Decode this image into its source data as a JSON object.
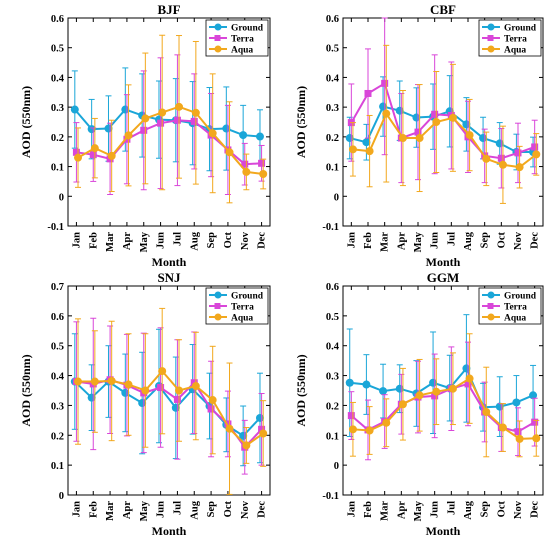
{
  "chart_data": [
    {
      "type": "line",
      "title": "BJF",
      "xlabel": "Month",
      "ylabel": "AOD (550nm)",
      "ylim": [
        -0.1,
        0.6
      ],
      "yticks": [
        -0.1,
        0,
        0.1,
        0.2,
        0.3,
        0.4,
        0.5,
        0.6
      ],
      "categories": [
        "Jan",
        "Feb",
        "Mar",
        "Apr",
        "May",
        "Jun",
        "Jul",
        "Aug",
        "Sep",
        "Oct",
        "Nov",
        "Dec"
      ],
      "legend": "top-right",
      "series": [
        {
          "name": "Ground",
          "color": "#1aa6d8",
          "marker": "circle",
          "values": [
            0.292,
            0.226,
            0.228,
            0.292,
            0.272,
            0.258,
            0.256,
            0.246,
            0.226,
            0.228,
            0.206,
            0.201
          ],
          "errors": [
            0.13,
            0.1,
            0.11,
            0.14,
            0.14,
            0.13,
            0.14,
            0.14,
            0.14,
            0.14,
            0.1,
            0.09
          ]
        },
        {
          "name": "Terra",
          "color": "#d946d9",
          "marker": "square",
          "values": [
            0.148,
            0.14,
            0.126,
            0.192,
            0.222,
            0.246,
            0.256,
            0.252,
            0.206,
            0.156,
            0.108,
            0.111
          ],
          "errors": [
            0.1,
            0.09,
            0.12,
            0.15,
            0.2,
            0.22,
            0.22,
            0.16,
            0.14,
            0.15,
            0.07,
            0.06
          ]
        },
        {
          "name": "Aqua",
          "color": "#f2a81d",
          "marker": "circle",
          "values": [
            0.13,
            0.162,
            0.136,
            0.205,
            0.262,
            0.282,
            0.301,
            0.281,
            0.212,
            0.148,
            0.082,
            0.075
          ],
          "errors": [
            0.1,
            0.1,
            0.12,
            0.17,
            0.22,
            0.26,
            0.24,
            0.24,
            0.2,
            0.17,
            0.06,
            0.05
          ]
        }
      ]
    },
    {
      "type": "line",
      "title": "CBF",
      "xlabel": "Month",
      "ylabel": "AOD (550nm)",
      "ylim": [
        -0.1,
        0.6
      ],
      "yticks": [
        -0.1,
        0,
        0.1,
        0.2,
        0.3,
        0.4,
        0.5,
        0.6
      ],
      "categories": [
        "Jan",
        "Feb",
        "Mar",
        "Apr",
        "May",
        "Jun",
        "Jul",
        "Aug",
        "Sep",
        "Oct",
        "Nov",
        "Dec"
      ],
      "legend": "top-right",
      "series": [
        {
          "name": "Ground",
          "color": "#1aa6d8",
          "marker": "circle",
          "values": [
            0.196,
            0.182,
            0.302,
            0.288,
            0.265,
            0.268,
            0.286,
            0.242,
            0.196,
            0.178,
            0.149,
            0.149
          ],
          "errors": [
            0.07,
            0.06,
            0.1,
            0.1,
            0.1,
            0.11,
            0.12,
            0.09,
            0.07,
            0.07,
            0.06,
            0.05
          ]
        },
        {
          "name": "Terra",
          "color": "#d946d9",
          "marker": "square",
          "values": [
            0.248,
            0.346,
            0.38,
            0.196,
            0.216,
            0.276,
            0.272,
            0.2,
            0.136,
            0.128,
            0.146,
            0.166
          ],
          "errors": [
            0.13,
            0.15,
            0.24,
            0.15,
            0.16,
            0.2,
            0.18,
            0.12,
            0.09,
            0.1,
            0.1,
            0.09
          ]
        },
        {
          "name": "Aqua",
          "color": "#f2a81d",
          "marker": "circle",
          "values": [
            0.158,
            0.152,
            0.278,
            0.196,
            0.196,
            0.25,
            0.264,
            0.206,
            0.126,
            0.106,
            0.098,
            0.141
          ],
          "errors": [
            0.09,
            0.12,
            0.23,
            0.16,
            0.18,
            0.17,
            0.18,
            0.12,
            0.09,
            0.13,
            0.07,
            0.07
          ]
        }
      ]
    },
    {
      "type": "line",
      "title": "SNJ",
      "xlabel": "Month",
      "ylabel": "AOD (550nm)",
      "ylim": [
        0,
        0.7
      ],
      "yticks": [
        0,
        0.1,
        0.2,
        0.3,
        0.4,
        0.5,
        0.6,
        0.7
      ],
      "categories": [
        "Jan",
        "Feb",
        "Mar",
        "Apr",
        "May",
        "Jun",
        "Jul",
        "Aug",
        "Sep",
        "Oct",
        "Nov",
        "Dec"
      ],
      "legend": "top-right",
      "series": [
        {
          "name": "Ground",
          "color": "#1aa6d8",
          "marker": "circle",
          "values": [
            0.38,
            0.326,
            0.38,
            0.342,
            0.308,
            0.365,
            0.292,
            0.354,
            0.298,
            0.235,
            0.198,
            0.258
          ],
          "errors": [
            0.16,
            0.11,
            0.12,
            0.13,
            0.17,
            0.19,
            0.17,
            0.15,
            0.11,
            0.09,
            0.1,
            0.15
          ]
        },
        {
          "name": "Terra",
          "color": "#d946d9",
          "marker": "square",
          "values": [
            0.38,
            0.372,
            0.386,
            0.368,
            0.342,
            0.36,
            0.32,
            0.376,
            0.288,
            0.238,
            0.16,
            0.22
          ],
          "errors": [
            0.2,
            0.22,
            0.18,
            0.17,
            0.2,
            0.2,
            0.2,
            0.17,
            0.16,
            0.11,
            0.09,
            0.12
          ]
        },
        {
          "name": "Aqua",
          "color": "#f2a81d",
          "marker": "circle",
          "values": [
            0.38,
            0.38,
            0.382,
            0.37,
            0.35,
            0.415,
            0.35,
            0.365,
            0.318,
            0.222,
            0.166,
            0.206
          ],
          "errors": [
            0.21,
            0.17,
            0.2,
            0.17,
            0.19,
            0.21,
            0.17,
            0.18,
            0.18,
            0.22,
            0.06,
            0.11
          ]
        }
      ]
    },
    {
      "type": "line",
      "title": "GGM",
      "xlabel": "Month",
      "ylabel": "AOD (550nm)",
      "ylim": [
        -0.1,
        0.6
      ],
      "yticks": [
        -0.1,
        0,
        0.1,
        0.2,
        0.3,
        0.4,
        0.5,
        0.6
      ],
      "categories": [
        "Jan",
        "Feb",
        "Mar",
        "Apr",
        "May",
        "Jun",
        "Jul",
        "Aug",
        "Sep",
        "Oct",
        "Nov",
        "Dec"
      ],
      "legend": "top-right",
      "series": [
        {
          "name": "Ground",
          "color": "#1aa6d8",
          "marker": "circle",
          "values": [
            0.276,
            0.27,
            0.248,
            0.256,
            0.24,
            0.276,
            0.258,
            0.324,
            0.194,
            0.196,
            0.21,
            0.234
          ],
          "errors": [
            0.18,
            0.1,
            0.09,
            0.08,
            0.11,
            0.17,
            0.11,
            0.18,
            0.08,
            0.1,
            0.09,
            0.1
          ]
        },
        {
          "name": "Terra",
          "color": "#d946d9",
          "marker": "square",
          "values": [
            0.166,
            0.118,
            0.146,
            0.204,
            0.228,
            0.232,
            0.256,
            0.272,
            0.178,
            0.126,
            0.112,
            0.144
          ],
          "errors": [
            0.08,
            0.1,
            0.09,
            0.1,
            0.12,
            0.14,
            0.14,
            0.14,
            0.1,
            0.08,
            0.08,
            0.08
          ]
        },
        {
          "name": "Aqua",
          "color": "#f2a81d",
          "marker": "circle",
          "values": [
            0.12,
            0.116,
            0.142,
            0.204,
            0.234,
            0.246,
            0.256,
            0.29,
            0.178,
            0.126,
            0.088,
            0.09
          ],
          "errors": [
            0.09,
            0.08,
            0.08,
            0.12,
            0.12,
            0.11,
            0.12,
            0.15,
            0.15,
            0.08,
            0.06,
            0.06
          ]
        }
      ]
    }
  ]
}
